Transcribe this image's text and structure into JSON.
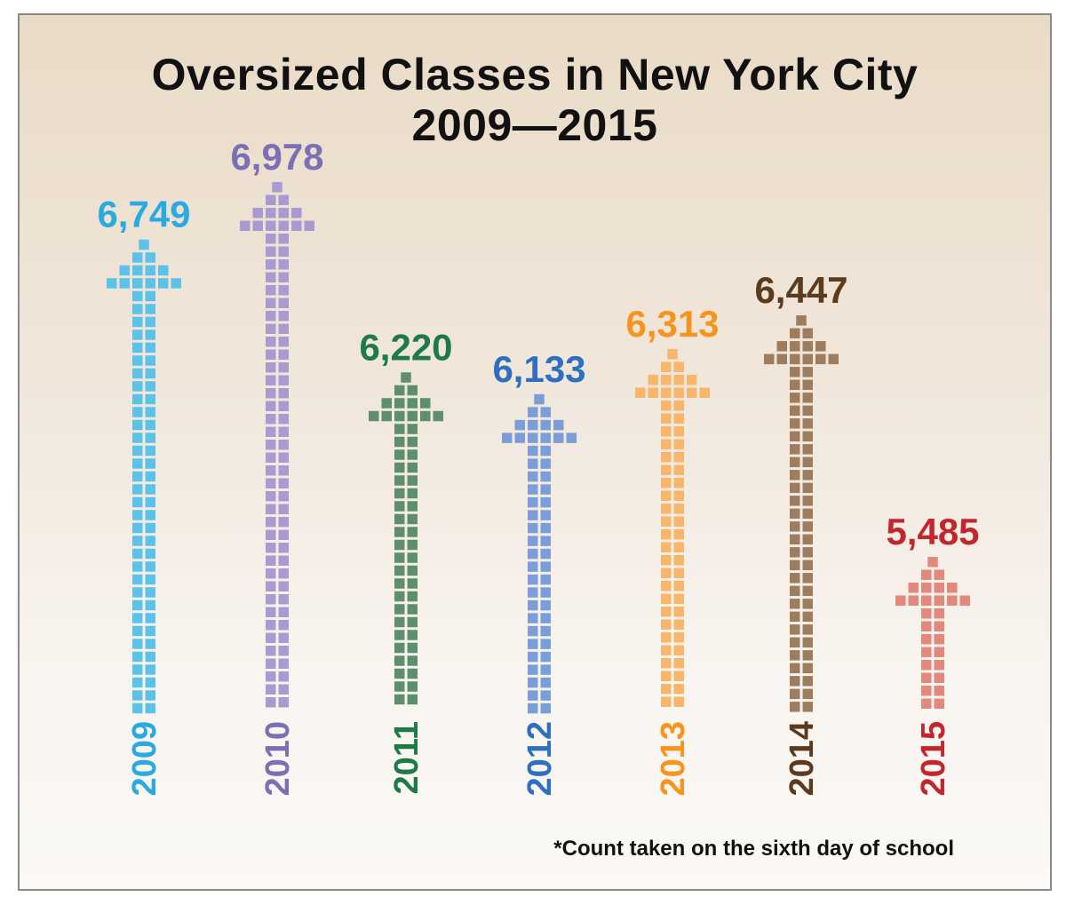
{
  "chart_data": {
    "type": "bar",
    "title": "Oversized Classes in New York City",
    "subtitle": "2009—2015",
    "xlabel": "",
    "ylabel": "",
    "categories": [
      "2009",
      "2010",
      "2011",
      "2012",
      "2013",
      "2014",
      "2015"
    ],
    "values": [
      6749,
      6978,
      6220,
      6133,
      6313,
      6447,
      5485
    ],
    "value_labels": [
      "6,749",
      "6,978",
      "6,220",
      "6,133",
      "6,313",
      "6,447",
      "5,485"
    ],
    "label_colors": [
      "#29abe2",
      "#7b6fb5",
      "#1e7a46",
      "#2f6fbf",
      "#f7941d",
      "#5a3b1e",
      "#c1272d"
    ],
    "arrow_colors": [
      "#5cc2ea",
      "#a99bd2",
      "#5e8f6c",
      "#7c9ed8",
      "#f9b56a",
      "#9e7c5e",
      "#e2887c"
    ],
    "footnote": "*Count taken on the sixth day of school",
    "grid": false
  }
}
